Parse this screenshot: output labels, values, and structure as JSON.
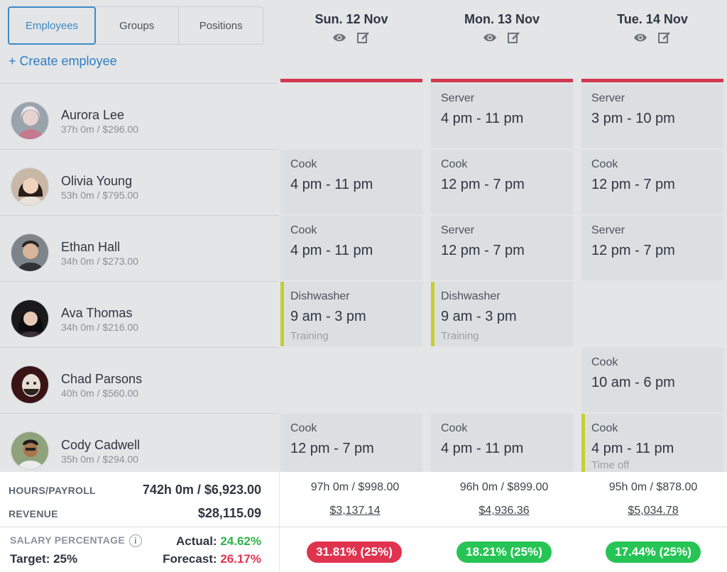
{
  "tabs": [
    "Employees",
    "Groups",
    "Positions"
  ],
  "create_label": "+ Create employee",
  "days": [
    {
      "label": "Sun. 12 Nov"
    },
    {
      "label": "Mon. 13 Nov"
    },
    {
      "label": "Tue. 14 Nov"
    }
  ],
  "employees": [
    {
      "name": "Aurora Lee",
      "stats": "37h 0m / $296.00"
    },
    {
      "name": "Olivia Young",
      "stats": "53h 0m / $795.00"
    },
    {
      "name": "Ethan Hall",
      "stats": "34h 0m / $273.00"
    },
    {
      "name": "Ava Thomas",
      "stats": "34h 0m / $216.00"
    },
    {
      "name": "Chad Parsons",
      "stats": "40h 0m / $560.00"
    },
    {
      "name": "Cody Cadwell",
      "stats": "35h 0m / $294.00"
    }
  ],
  "shifts": {
    "r0d1": {
      "role": "Server",
      "time": "4 pm - 11 pm"
    },
    "r0d2": {
      "role": "Server",
      "time": "3 pm - 10 pm"
    },
    "r1d0": {
      "role": "Cook",
      "time": "4 pm - 11 pm"
    },
    "r1d1": {
      "role": "Cook",
      "time": "12 pm - 7 pm"
    },
    "r1d2": {
      "role": "Cook",
      "time": "12 pm - 7 pm"
    },
    "r2d0": {
      "role": "Cook",
      "time": "4 pm - 11 pm"
    },
    "r2d1": {
      "role": "Server",
      "time": "12 pm - 7 pm"
    },
    "r2d2": {
      "role": "Server",
      "time": "12 pm - 7 pm"
    },
    "r3d0": {
      "role": "Dishwasher",
      "time": "9 am - 3 pm",
      "note": "Training"
    },
    "r3d1": {
      "role": "Dishwasher",
      "time": "9 am - 3 pm",
      "note": "Training"
    },
    "r4d2": {
      "role": "Cook",
      "time": "10 am - 6 pm"
    },
    "r5d0": {
      "role": "Cook",
      "time": "12 pm - 7 pm"
    },
    "r5d1": {
      "role": "Cook",
      "time": "4 pm - 11 pm"
    },
    "r5d2": {
      "role": "Cook",
      "time": "4 pm - 11 pm",
      "note": "Time off"
    }
  },
  "footer": {
    "hours_payroll_label": "HOURS/PAYROLL",
    "hours_payroll_total": "742h 0m / $6,923.00",
    "revenue_label": "REVENUE",
    "revenue_total": "$28,115.09",
    "salary_pct_label": "SALARY PERCENTAGE",
    "target": "Target: 25%",
    "actual_label": "Actual:",
    "actual_value": "24.62%",
    "forecast_label": "Forecast:",
    "forecast_value": "26.17%",
    "day_hours": [
      "97h 0m / $998.00",
      "96h 0m / $899.00",
      "95h 0m / $878.00"
    ],
    "day_revenue": [
      "$3,137.14",
      "$4,936.36",
      "$5,034.78"
    ],
    "day_pct": [
      "31.81% (25%)",
      "18.21% (25%)",
      "17.44% (25%)"
    ]
  },
  "colors": {
    "accent_blue": "#3d8ac4",
    "header_red": "#d2394f",
    "shift_accent": "#c6cf2f",
    "pill_red": "#e0334f",
    "pill_green": "#26c455",
    "text_green": "#2cb34a",
    "text_red": "#e0334f"
  },
  "icons": {
    "view": "eye-icon",
    "edit": "edit-icon",
    "info": "info-icon"
  }
}
